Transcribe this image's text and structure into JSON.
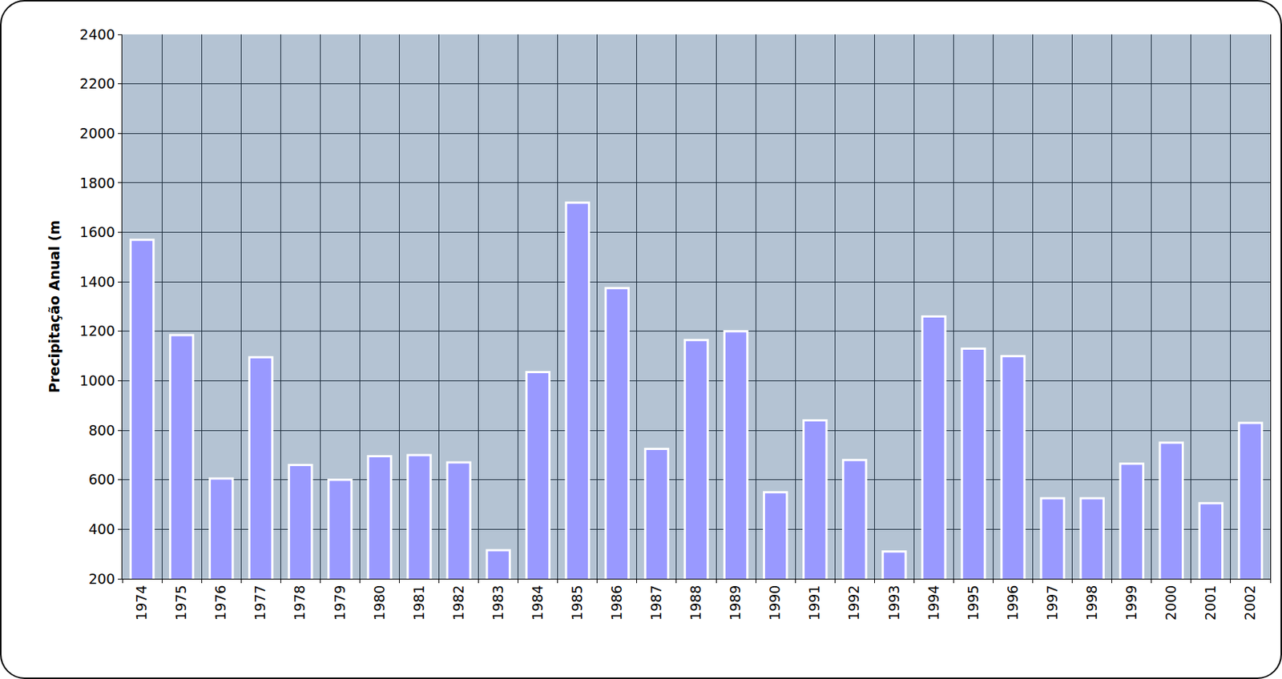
{
  "chart_data": {
    "type": "bar",
    "y_label": "Precipitação Anual (m",
    "categories": [
      "1974",
      "1975",
      "1976",
      "1977",
      "1978",
      "1979",
      "1980",
      "1981",
      "1982",
      "1983",
      "1984",
      "1985",
      "1986",
      "1987",
      "1988",
      "1989",
      "1990",
      "1991",
      "1992",
      "1993",
      "1994",
      "1995",
      "1996",
      "1997",
      "1998",
      "1999",
      "2000",
      "2001",
      "2002"
    ],
    "values": [
      1570,
      1185,
      605,
      1095,
      660,
      600,
      695,
      700,
      670,
      315,
      1035,
      1720,
      1375,
      725,
      1165,
      1200,
      550,
      840,
      680,
      310,
      1260,
      1130,
      1100,
      525,
      525,
      665,
      750,
      505,
      830
    ],
    "color": "#9999ff",
    "ylim": [
      200,
      2400
    ],
    "yticks": [
      200,
      400,
      600,
      800,
      1000,
      1200,
      1400,
      1600,
      1800,
      2000,
      2200,
      2400
    ],
    "grid": true
  }
}
